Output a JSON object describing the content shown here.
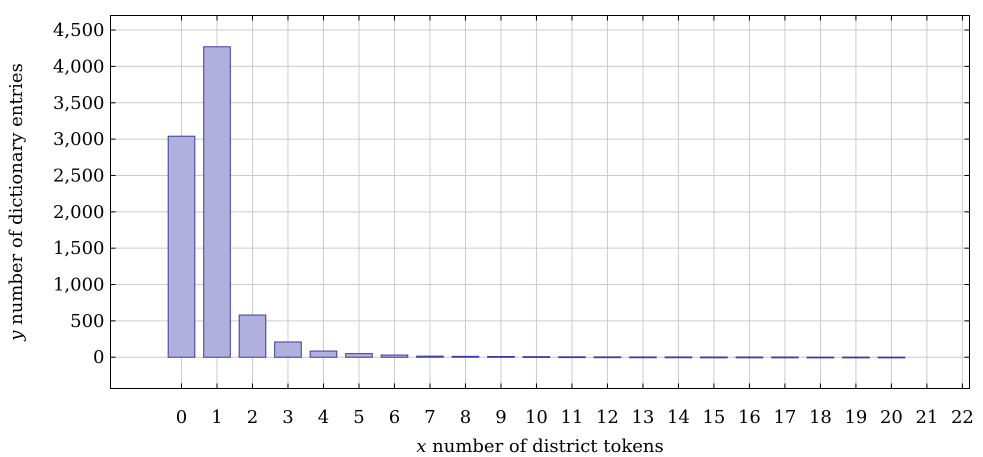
{
  "chart_data": {
    "type": "bar",
    "xlabel_var": "x",
    "xlabel_text": " number of district tokens",
    "ylabel_var": "y",
    "ylabel_text": " number of dictionary entries",
    "x_ticks": [
      "0",
      "1",
      "2",
      "3",
      "4",
      "5",
      "6",
      "7",
      "8",
      "9",
      "10",
      "11",
      "12",
      "13",
      "14",
      "15",
      "16",
      "17",
      "18",
      "19",
      "20",
      "21",
      "22"
    ],
    "y_ticks": [
      0,
      500,
      1000,
      1500,
      2000,
      2500,
      3000,
      3500,
      4000,
      4500
    ],
    "y_tick_labels": [
      "0",
      "500",
      "1,000",
      "1,500",
      "2,000",
      "2,500",
      "3,000",
      "3,500",
      "4,000",
      "4,500"
    ],
    "categories": [
      0,
      1,
      2,
      3,
      4,
      5,
      6,
      7,
      8,
      9,
      10,
      11,
      12,
      13,
      14,
      15,
      16,
      17,
      18,
      19,
      20
    ],
    "values": [
      3040,
      4270,
      580,
      210,
      85,
      50,
      30,
      15,
      12,
      10,
      8,
      6,
      5,
      4,
      4,
      3,
      3,
      3,
      2,
      2,
      2
    ],
    "xlim": [
      -2,
      22.2
    ],
    "ylim": [
      -430,
      4700
    ],
    "grid": true,
    "bar_fill": "#b0b0dc",
    "bar_stroke": "#3a3aa6"
  }
}
